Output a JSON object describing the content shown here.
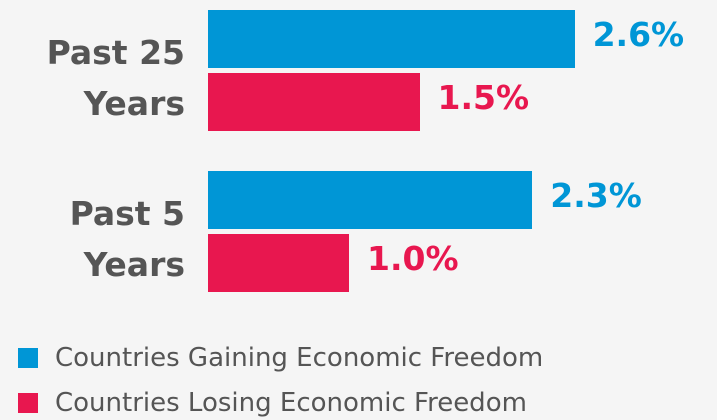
{
  "chart_data": {
    "type": "bar",
    "orientation": "horizontal",
    "categories": [
      "Past 25 Years",
      "Past 5 Years"
    ],
    "series": [
      {
        "name": "Countries Gaining Economic Freedom",
        "color": "#0096d6",
        "values": [
          2.6,
          2.3
        ],
        "value_labels": [
          "2.6%",
          "2.3%"
        ]
      },
      {
        "name": "Countries Losing Economic Freedom",
        "color": "#e8174f",
        "values": [
          1.5,
          1.0
        ],
        "value_labels": [
          "1.5%",
          "1.0%"
        ]
      }
    ]
  }
}
